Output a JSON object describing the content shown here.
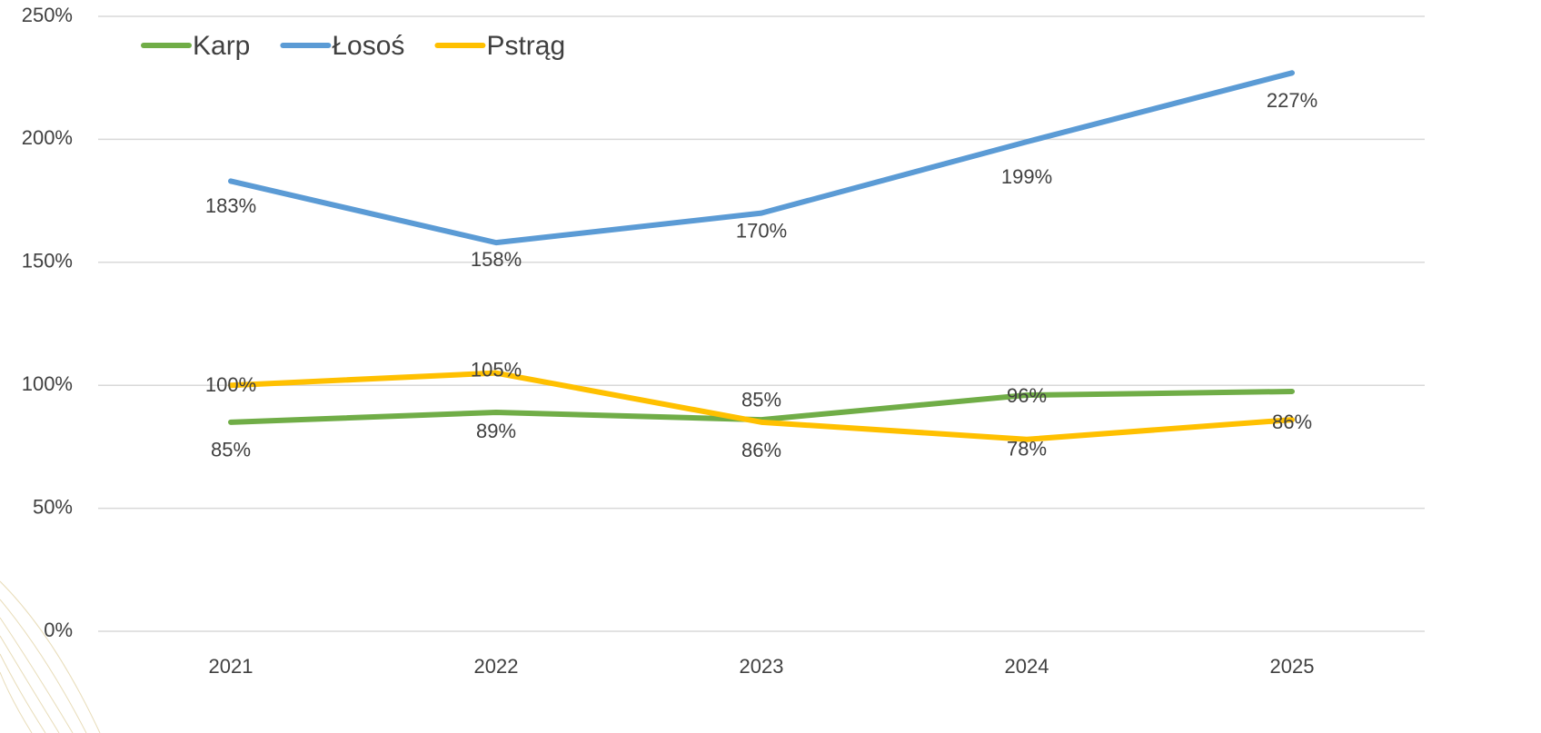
{
  "chart_data": {
    "type": "line",
    "categories": [
      "2021",
      "2022",
      "2023",
      "2024",
      "2025"
    ],
    "series": [
      {
        "name": "Karp",
        "color": "#70ad47",
        "values": [
          85,
          89,
          86,
          96,
          97.5
        ],
        "value_labels": [
          "85%",
          "89%",
          "86%",
          "96%",
          null
        ]
      },
      {
        "name": "Łosoś",
        "color": "#5b9bd5",
        "values": [
          183,
          158,
          170,
          199,
          227
        ],
        "value_labels": [
          "183%",
          "158%",
          "170%",
          "199%",
          "227%"
        ]
      },
      {
        "name": "Pstrąg",
        "color": "#ffc000",
        "values": [
          100,
          105,
          85,
          78,
          86
        ],
        "value_labels": [
          "100%",
          "105%",
          "85%",
          "78%",
          "86%"
        ]
      }
    ],
    "ylim": [
      0,
      250
    ],
    "yticks": [
      {
        "value": 0,
        "label": "0%"
      },
      {
        "value": 50,
        "label": "50%"
      },
      {
        "value": 100,
        "label": "100%"
      },
      {
        "value": 150,
        "label": "150%"
      },
      {
        "value": 200,
        "label": "200%"
      },
      {
        "value": 250,
        "label": "250%"
      }
    ],
    "grid": true,
    "legend": "top-left"
  }
}
